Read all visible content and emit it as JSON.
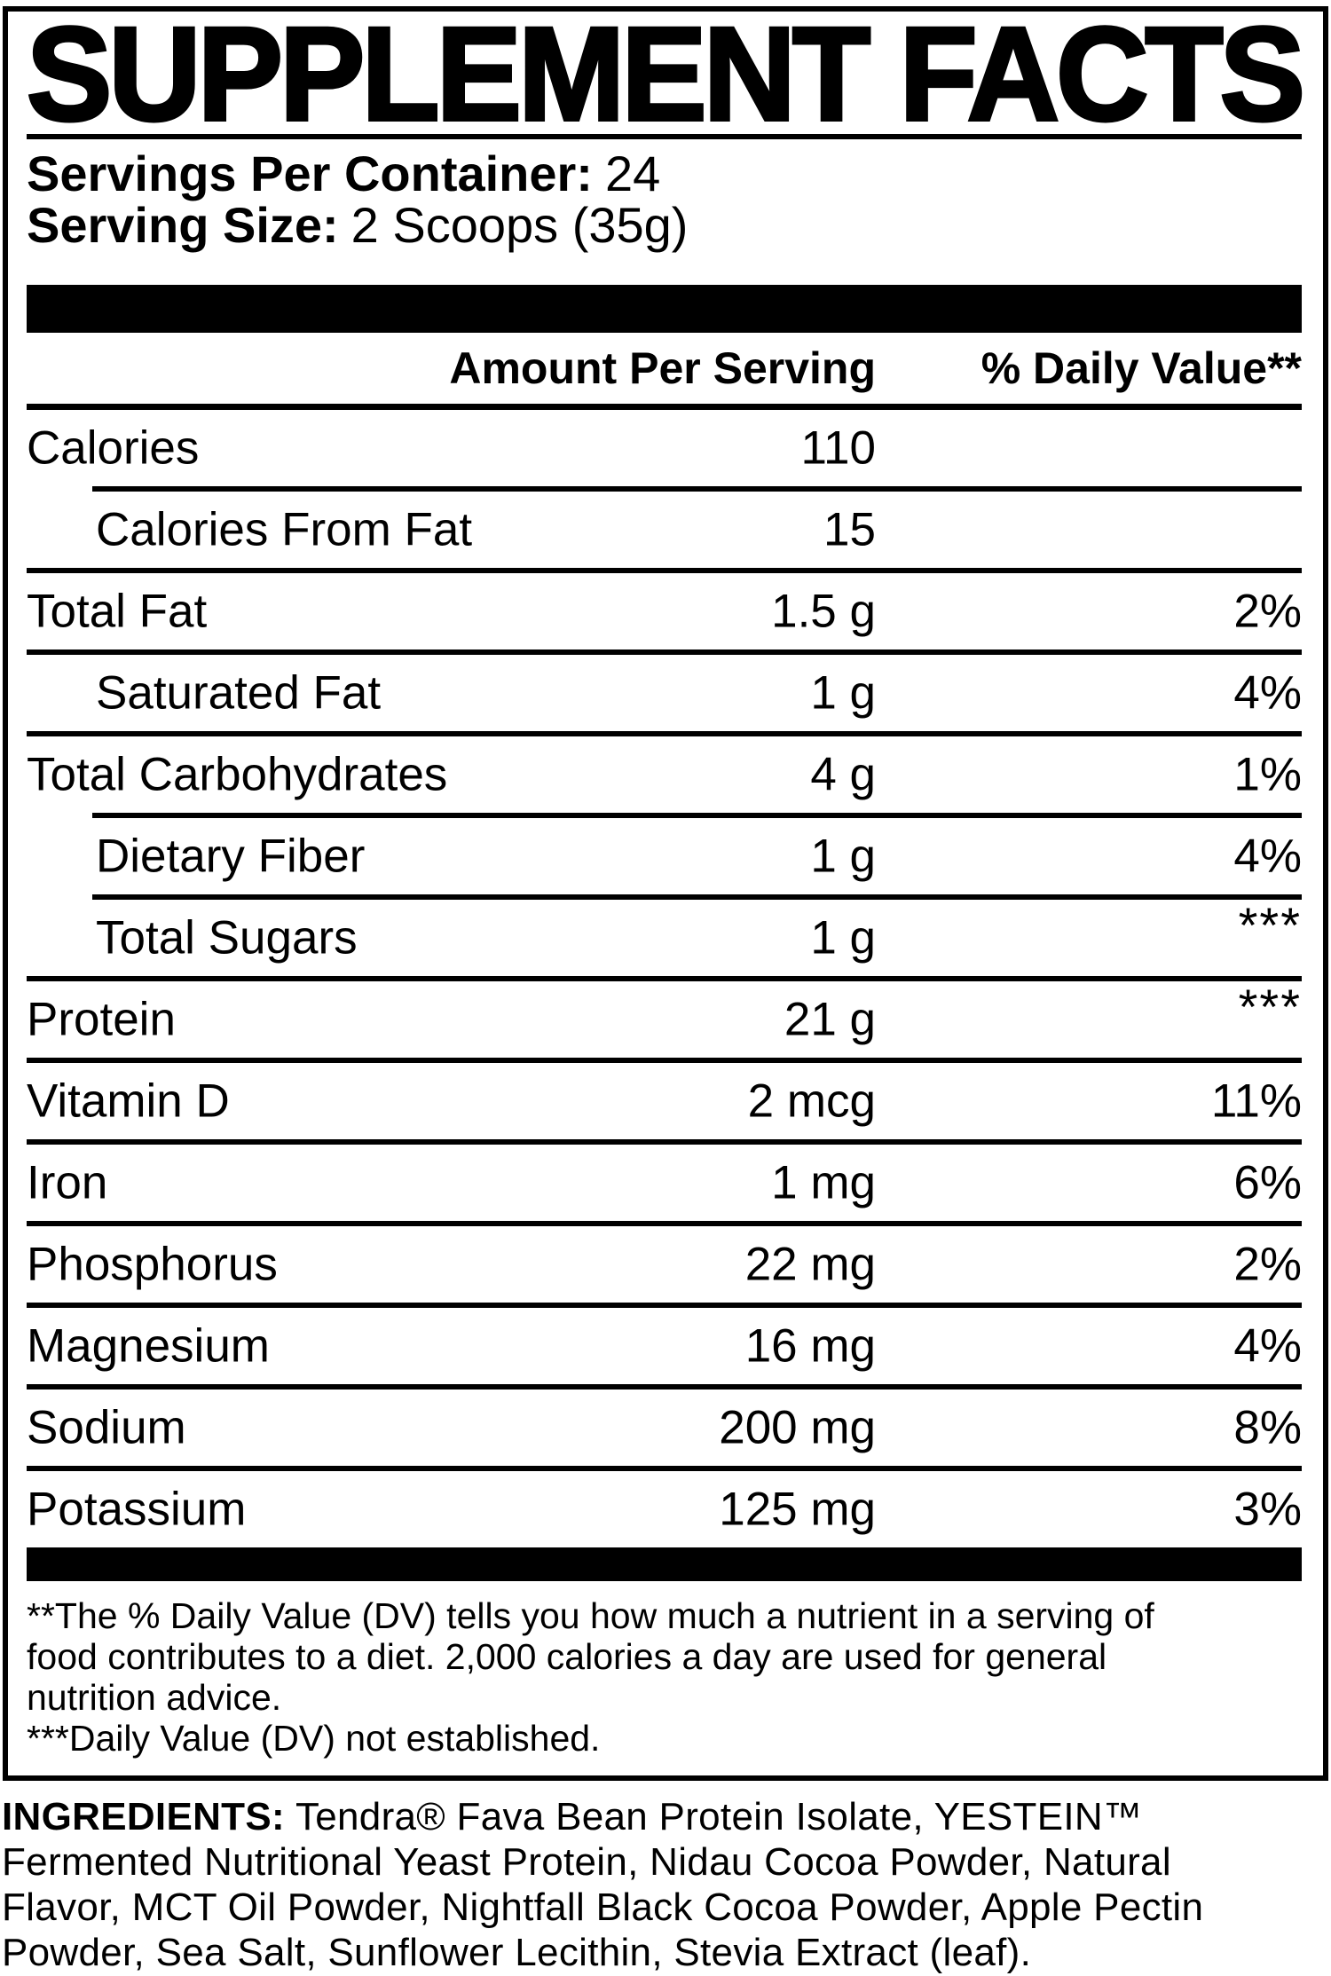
{
  "colors": {
    "ink": "#000000",
    "paper": "#ffffff"
  },
  "title": "SUPPLEMENT FACTS",
  "serving_info": {
    "servings_per_container_label": "Servings Per Container:",
    "servings_per_container_value": "24",
    "serving_size_label": "Serving Size:",
    "serving_size_value": "2 Scoops (35g)"
  },
  "table": {
    "header": {
      "amount": "Amount Per Serving",
      "daily_value": "% Daily Value**"
    },
    "rows": [
      {
        "name": "Calories",
        "amount": "110",
        "dv": ""
      },
      {
        "name": "Calories From Fat",
        "amount": "15",
        "dv": ""
      },
      {
        "name": "Total Fat",
        "amount": "1.5 g",
        "dv": "2%"
      },
      {
        "name": "Saturated Fat",
        "amount": "1 g",
        "dv": "4%"
      },
      {
        "name": "Total Carbohydrates",
        "amount": "4 g",
        "dv": "1%"
      },
      {
        "name": "Dietary Fiber",
        "amount": "1 g",
        "dv": "4%"
      },
      {
        "name": "Total Sugars",
        "amount": "1 g",
        "dv": "***"
      },
      {
        "name": "Protein",
        "amount": "21 g",
        "dv": "***"
      },
      {
        "name": "Vitamin D",
        "amount": "2 mcg",
        "dv": "11%"
      },
      {
        "name": "Iron",
        "amount": "1 mg",
        "dv": "6%"
      },
      {
        "name": "Phosphorus",
        "amount": "22 mg",
        "dv": "2%"
      },
      {
        "name": "Magnesium",
        "amount": "16 mg",
        "dv": "4%"
      },
      {
        "name": "Sodium",
        "amount": "200 mg",
        "dv": "8%"
      },
      {
        "name": "Potassium",
        "amount": "125 mg",
        "dv": "3%"
      }
    ]
  },
  "footnotes": {
    "lines": [
      "**The % Daily Value (DV) tells you how much a nutrient in a serving of",
      "food contributes to a diet. 2,000 calories a day are used for general",
      "nutrition advice.",
      "***Daily Value (DV) not established."
    ]
  },
  "ingredients": {
    "label": "INGREDIENTS:",
    "lines": [
      "Tendra® Fava Bean Protein Isolate, YESTEIN™",
      "Fermented Nutritional Yeast Protein, Nidau Cocoa Powder, Natural",
      "Flavor, MCT Oil Powder, Nightfall Black Cocoa Powder, Apple Pectin",
      "Powder, Sea Salt, Sunflower Lecithin, Stevia Extract (leaf)."
    ]
  }
}
